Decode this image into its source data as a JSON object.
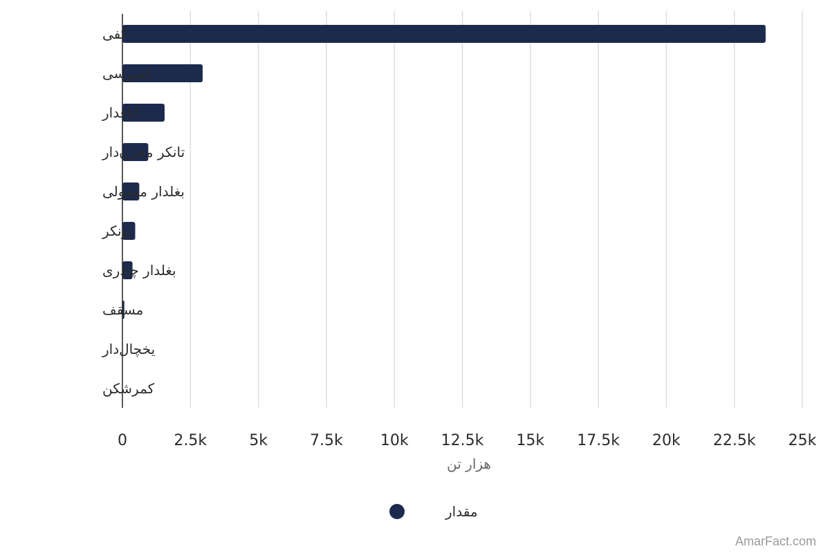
{
  "chart_data": {
    "type": "bar",
    "orientation": "horizontal",
    "categories": [
      "کفی",
      "کمپرسی",
      "اتاقدار",
      "تانکر مخزن‌دار",
      "بغلدار معمولی",
      "بونکر",
      "بغلدار چادری",
      "مسقف",
      "یخچال‌دار",
      "کمرشکن"
    ],
    "series": [
      {
        "name": "مقدار",
        "color": "#1c2a4d",
        "values": [
          23650,
          2950,
          1550,
          950,
          620,
          470,
          370,
          70,
          0,
          0
        ]
      }
    ],
    "xlabel": "هزار تن",
    "ylabel": "",
    "xlim": [
      0,
      25000
    ],
    "xticks": [
      0,
      2500,
      5000,
      7500,
      10000,
      12500,
      15000,
      17500,
      20000,
      22500,
      25000
    ],
    "xtick_labels": [
      "0",
      "2.5k",
      "5k",
      "7.5k",
      "10k",
      "12.5k",
      "15k",
      "17.5k",
      "20k",
      "22.5k",
      "25k"
    ],
    "grid": true,
    "legend_position": "bottom-center"
  },
  "watermark": "AmarFact.com"
}
